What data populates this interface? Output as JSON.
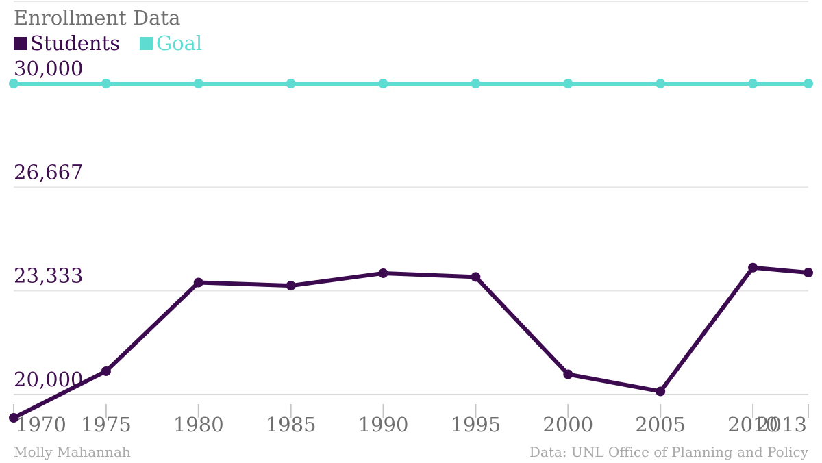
{
  "chart_data": {
    "type": "line",
    "title": "Enrollment Data",
    "x": [
      "1970",
      "1975",
      "1980",
      "1985",
      "1990",
      "1995",
      "2000",
      "2005",
      "2010",
      "2013"
    ],
    "series": [
      {
        "name": "Students",
        "color": "#3b0a4f",
        "values": [
          19250,
          20750,
          23600,
          23500,
          23900,
          23780,
          20650,
          20100,
          24080,
          23920
        ]
      },
      {
        "name": "Goal",
        "color": "#5fdcd2",
        "values": [
          30000,
          30000,
          30000,
          30000,
          30000,
          30000,
          30000,
          30000,
          30000,
          30000
        ]
      }
    ],
    "yticks": [
      "20,000",
      "23,333",
      "26,667",
      "30,000"
    ],
    "ytick_values": [
      20000,
      23333.33,
      26666.67,
      30000
    ],
    "ylim": [
      20000,
      30000
    ],
    "grid": true,
    "legend_position": "top-left"
  },
  "footer": {
    "author": "Molly Mahannah",
    "source": "Data: UNL Office of Planning and Policy"
  }
}
